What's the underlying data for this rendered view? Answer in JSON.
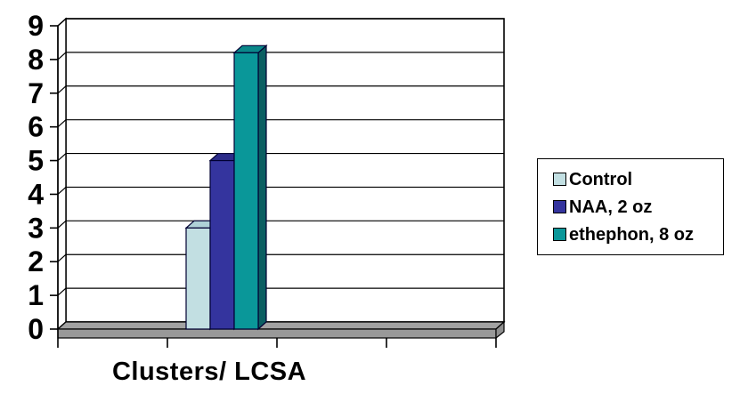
{
  "chart_data": {
    "type": "bar",
    "projection": "3d",
    "title": "",
    "xlabel": "Clusters/ LCSA",
    "ylabel": "",
    "categories": [
      "Clusters/ LCSA"
    ],
    "series": [
      {
        "name": "Control",
        "values": [
          3
        ],
        "color": "#C2DFE2",
        "top_color": "#AFD2D7",
        "side_color": "#8FB6BD"
      },
      {
        "name": "NAA, 2 oz",
        "values": [
          5
        ],
        "color": "#34349E",
        "top_color": "#2C2C8A",
        "side_color": "#202073"
      },
      {
        "name": "ethephon, 8 oz",
        "values": [
          8.2
        ],
        "color": "#0A9799",
        "top_color": "#0A8789",
        "side_color": "#0B5F62"
      }
    ],
    "ylim": [
      0,
      9
    ],
    "yticks": [
      0,
      1,
      2,
      3,
      4,
      5,
      6,
      7,
      8,
      9
    ],
    "grid": true,
    "legend_position": "right",
    "colors": {
      "background": "#FFFFFF",
      "wall": "#FFFFFF",
      "floor_top": "#A3A3A3",
      "floor_front": "#999999",
      "floor_side": "#8F8F8F",
      "axis": "#000000",
      "gridline": "#000000",
      "bar_outline": "#000033",
      "text": "#000000"
    }
  }
}
